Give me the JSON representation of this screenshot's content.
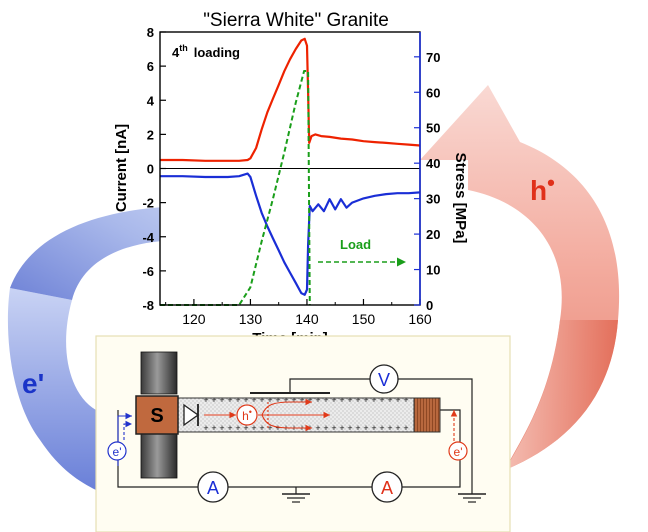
{
  "chart_data": {
    "type": "line",
    "title": "\"Sierra White\" Granite",
    "annotation_loading_prefix": "4",
    "annotation_loading_sup": "th",
    "annotation_loading_suffix": "loading",
    "annotation_load": "Load",
    "xlabel": "Time [min]",
    "ylabel_left": "Current [nA]",
    "ylabel_right": "Stress [MPa]",
    "xlim": [
      114,
      160
    ],
    "ylim_left": [
      -8,
      8
    ],
    "ylim_right": [
      0,
      77
    ],
    "x_ticks": [
      "120",
      "130",
      "140",
      "150",
      "160"
    ],
    "x_tick_values": [
      120,
      130,
      140,
      150,
      160
    ],
    "y_left_ticks": [
      "8",
      "6",
      "4",
      "2",
      "0",
      "-2",
      "-4",
      "-6",
      "-8"
    ],
    "y_left_tick_values": [
      8,
      6,
      4,
      2,
      0,
      -2,
      -4,
      -6,
      -8
    ],
    "y_right_ticks": [
      "70",
      "60",
      "50",
      "40",
      "30",
      "20",
      "10",
      "0"
    ],
    "y_right_tick_values": [
      70,
      60,
      50,
      40,
      30,
      20,
      10,
      0
    ],
    "zero_line": 0,
    "series": [
      {
        "color": "#ee2200",
        "axis": "left",
        "x": [
          114,
          118,
          122,
          126,
          128,
          129.5,
          130,
          131,
          132,
          133,
          134,
          135,
          136,
          137,
          138,
          139,
          139.6,
          140,
          140.2,
          140.4,
          140.8,
          141.5,
          142.5,
          144,
          146,
          148,
          150,
          152,
          154,
          156,
          158,
          160
        ],
        "y": [
          0.5,
          0.5,
          0.45,
          0.45,
          0.45,
          0.5,
          0.6,
          1.2,
          2.3,
          3.3,
          4.1,
          4.9,
          5.7,
          6.4,
          7.0,
          7.5,
          7.6,
          7.2,
          4.5,
          1.5,
          1.9,
          2.0,
          1.9,
          1.85,
          1.75,
          1.7,
          1.6,
          1.55,
          1.5,
          1.45,
          1.4,
          1.35
        ]
      },
      {
        "color": "#1a2ed6",
        "axis": "left",
        "x": [
          114,
          118,
          122,
          126,
          128,
          129.5,
          130,
          131,
          132,
          133,
          134,
          135,
          136,
          137,
          138,
          139,
          139.6,
          140,
          140.2,
          140.5,
          141,
          142,
          143,
          144,
          145,
          146,
          147,
          148,
          150,
          152,
          154,
          156,
          158,
          160
        ],
        "y": [
          -0.45,
          -0.45,
          -0.5,
          -0.5,
          -0.45,
          -0.3,
          -0.5,
          -1.6,
          -2.6,
          -3.4,
          -4.1,
          -4.8,
          -5.5,
          -6.1,
          -6.7,
          -7.3,
          -7.4,
          -7.1,
          -4.5,
          -2.2,
          -2.5,
          -2.1,
          -2.5,
          -1.8,
          -2.4,
          -1.8,
          -2.3,
          -2.0,
          -1.75,
          -1.6,
          -1.5,
          -1.45,
          -1.45,
          -1.4
        ]
      },
      {
        "color": "#1a9e1a",
        "axis": "right",
        "dashed": true,
        "x": [
          114,
          128,
          130,
          132,
          134,
          136,
          138,
          139.5,
          140.2,
          140.5
        ],
        "y": [
          0,
          0,
          5,
          18,
          30,
          43,
          57,
          66,
          66,
          0
        ]
      }
    ]
  },
  "circuit": {
    "sample_label": "S",
    "hole_label": "h",
    "hole_mark": "•",
    "electron_label": "e",
    "electron_mark": "'",
    "voltmeter_label": "V",
    "ammeter_left_label": "A",
    "ammeter_right_label": "A",
    "plus_mark": "+"
  },
  "arrows": {
    "left_label": "e'",
    "right_label": "h",
    "right_mark": "•",
    "left_color": "#6a80d8",
    "right_color": "#e26a55"
  }
}
